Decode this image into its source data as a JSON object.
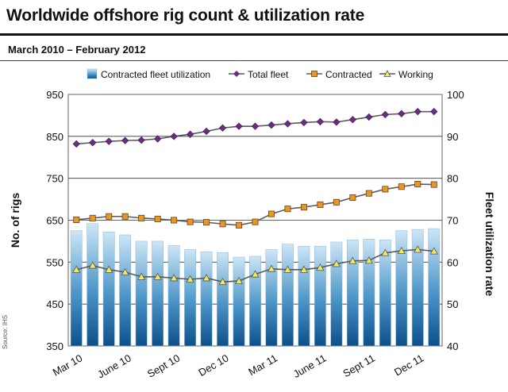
{
  "title": "Worldwide offshore rig count & utilization rate",
  "subtitle": "March 2010 – February 2012",
  "source": "Source: IHS",
  "colors": {
    "bar_top": "#cde6f6",
    "bar_bottom": "#0d4f8a",
    "total": "#6b2c82",
    "contracted": "#e8952a",
    "working": "#f2ea5a",
    "line": "#5a5a5a"
  },
  "chart_data": {
    "type": "bar",
    "ylabel": "No. of rigs",
    "y2label": "Fleet utilization rate",
    "ylim": [
      350,
      950
    ],
    "y2lim": [
      40,
      100
    ],
    "yticks": [
      "950",
      "850",
      "750",
      "650",
      "550",
      "450",
      "350"
    ],
    "y2ticks": [
      "100",
      "90",
      "80",
      "70",
      "60",
      "50",
      "40"
    ],
    "xticklabels": [
      "Mar 10",
      "June 10",
      "Sept 10",
      "Dec 10",
      "Mar 11",
      "June 11",
      "Sept 11",
      "Dec 11"
    ],
    "legend": [
      "Contracted fleet utilization",
      "Total fleet",
      "Contracted",
      "Working"
    ],
    "series": [
      {
        "name": "Contracted fleet utilization",
        "axis": "right",
        "values": [
          67.5,
          69.2,
          67.2,
          66.5,
          65.0,
          65.0,
          64.0,
          63.0,
          62.5,
          62.3,
          61.2,
          61.4,
          63.0,
          64.3,
          63.8,
          63.8,
          64.8,
          65.3,
          65.5,
          65.3,
          67.5,
          67.8,
          68.0
        ]
      },
      {
        "name": "Total fleet",
        "axis": "left",
        "values": [
          832,
          835,
          838,
          840,
          841,
          844,
          850,
          855,
          862,
          870,
          874,
          874,
          877,
          880,
          883,
          885,
          884,
          890,
          896,
          902,
          904,
          909,
          909
        ]
      },
      {
        "name": "Contracted",
        "axis": "left",
        "values": [
          651,
          655,
          659,
          659,
          655,
          653,
          650,
          646,
          645,
          641,
          638,
          646,
          665,
          677,
          681,
          687,
          693,
          704,
          714,
          724,
          730,
          736,
          735
        ]
      },
      {
        "name": "Working",
        "axis": "left",
        "values": [
          532,
          542,
          532,
          526,
          515,
          515,
          512,
          509,
          512,
          503,
          505,
          521,
          534,
          532,
          532,
          537,
          546,
          553,
          554,
          572,
          577,
          580,
          576
        ]
      }
    ]
  }
}
